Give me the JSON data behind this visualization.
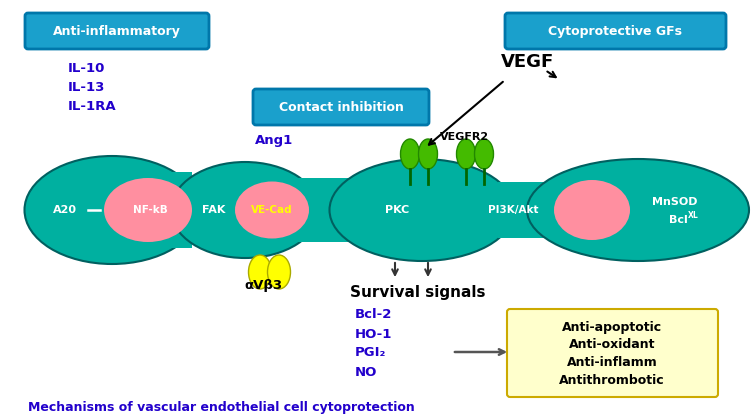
{
  "bg_color": "#ffffff",
  "cell_color": "#00b0a0",
  "cell_dark": "#008880",
  "cell_border": "#006060",
  "pink_blob": "#ff8fa0",
  "yellow_color": "#ffff00",
  "green_color": "#44bb00",
  "box_blue_bg": "#1aa0cc",
  "box_blue_border": "#0077aa",
  "box_yellow_bg": "#ffffcc",
  "box_yellow_border": "#ccaa00",
  "text_blue": "#2200cc",
  "text_white": "#ffffff",
  "text_black": "#000000",
  "text_yellow": "#ddcc00",
  "title": "Mechanisms of vascular endothelial cell cytoprotection",
  "label_anti_inflam": "Anti-inflammatory",
  "label_contact": "Contact inhibition",
  "label_cyto": "Cytoprotective GFs",
  "il_labels": [
    "IL-10",
    "IL-13",
    "IL-1RA"
  ],
  "survival_labels": [
    "Bcl-2",
    "HO-1",
    "PGI₂",
    "NO"
  ],
  "anti_labels": [
    "Anti-apoptotic",
    "Anti-oxidant",
    "Anti-inflamm",
    "Antithrombotic"
  ],
  "vegfr2_label": "VEGFR2",
  "vegf_label": "VEGF",
  "ang1_label": "Ang1",
  "alpha_v_b3": "αVβ3",
  "survival_signals": "Survival signals"
}
